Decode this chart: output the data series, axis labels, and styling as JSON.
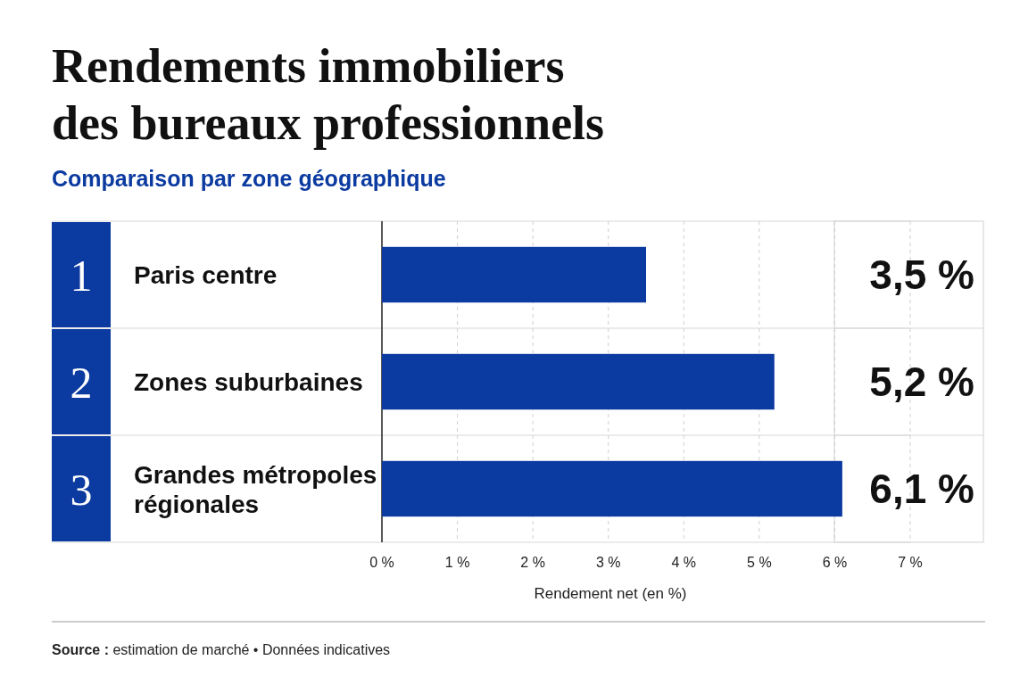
{
  "chart_data": {
    "type": "bar",
    "orientation": "horizontal",
    "title": "Rendements immobiliers des bureaux professionnels",
    "subtitle": "Comparaison par zone géographique",
    "categories": [
      "Paris centre",
      "Zones suburbaines",
      "Grandes métropoles régionales"
    ],
    "values": [
      3.5,
      5.2,
      6.1
    ],
    "color": "#0b3aa0",
    "value_labels": [
      "3,5 %",
      "5,2 %",
      "6,1 %"
    ],
    "xlim": [
      0,
      7
    ],
    "xticks": [
      {
        "value": 0,
        "label": "0 %"
      },
      {
        "value": 1,
        "label": "1 %"
      },
      {
        "value": 2,
        "label": "2 %"
      },
      {
        "value": 3,
        "label": "3 %"
      },
      {
        "value": 4,
        "label": "4 %"
      },
      {
        "value": 5,
        "label": "5 %"
      },
      {
        "value": 6,
        "label": "6 %"
      },
      {
        "value": 7,
        "label": "7 %"
      }
    ],
    "xlabel": "Rendement net (en %)",
    "grid": "x",
    "annotations": [
      "1",
      "2",
      "3",
      "Source : estimation de marché • Données indicatives"
    ]
  }
}
